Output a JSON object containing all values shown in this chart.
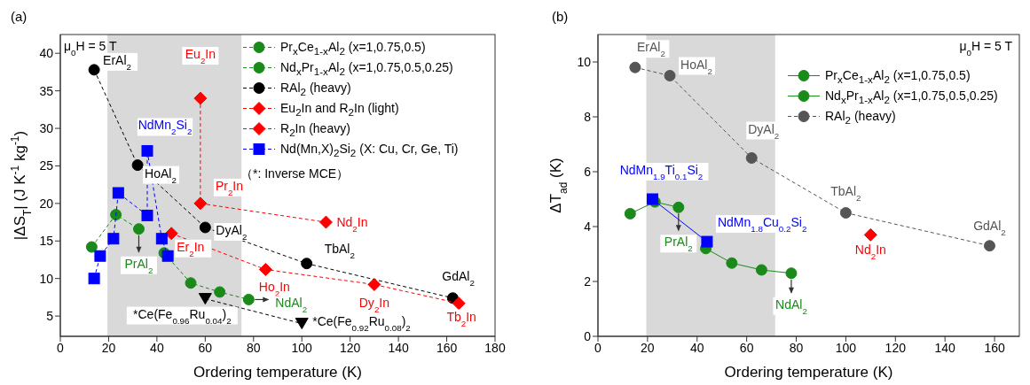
{
  "chart_data": [
    {
      "type": "scatter",
      "title": "(a)",
      "xlabel": "Ordering temperature (K)",
      "ylabel": "|ΔS$_{T}$| (J K$^{-1}$ kg$^{-1}$)",
      "xlim": [
        0,
        180
      ],
      "xticks": [
        0,
        20,
        40,
        60,
        80,
        100,
        120,
        140,
        160,
        180
      ],
      "ylim": [
        2.3,
        42.5
      ],
      "yticks": [
        5,
        10,
        15,
        20,
        25,
        30,
        35,
        40
      ],
      "legend": "top right",
      "bands": [
        {
          "axis": "x",
          "from": 19.5,
          "to": 75,
          "color": "#d9d9d9"
        }
      ],
      "series": [
        {
          "type": "line",
          "name": "Pr$_{x}$Ce$_{1-x}$Al$_{2}$ (x=1,0.75,0.5)",
          "color": "#1a8a1a",
          "marker": "circle",
          "line_style": "dashed",
          "x": [
            13,
            23,
            32.5
          ],
          "values": [
            14.2,
            18.5,
            16.6
          ]
        },
        {
          "type": "line",
          "name": "Nd$_{x}$Pr$_{1-x}$Al$_{2}$ (x=1,0.75,0.5,0.25)",
          "color": "#1a8a1a",
          "marker": "circle",
          "line_style": "dashed",
          "x": [
            43,
            54,
            66,
            78
          ],
          "values": [
            13.4,
            9.4,
            8.2,
            7.2
          ]
        },
        {
          "type": "line",
          "name": "RAl$_{2}$ (heavy)",
          "color": "#000000",
          "marker": "circle",
          "line_style": "dashed",
          "x": [
            14,
            32,
            60,
            102,
            162.5
          ],
          "values": [
            37.8,
            25.1,
            16.8,
            12,
            7.4
          ]
        },
        {
          "type": "line",
          "name": "Eu$_{2}$In and R$_{2}$In (light)",
          "color": "#ff0000",
          "marker": "diamond",
          "line_style": "dashed",
          "x": [
            58,
            58,
            110
          ],
          "values": [
            34,
            20,
            17.5
          ]
        },
        {
          "type": "line",
          "name": "R$_{2}$In (heavy)",
          "color": "#ff0000",
          "marker": "diamond",
          "line_style": "dashed",
          "x": [
            46,
            85,
            130,
            165
          ],
          "values": [
            16,
            11.2,
            9.2,
            6.7
          ]
        },
        {
          "type": "line",
          "name": "Nd(Mn,X)$_{2}$Si$_{2}$ (X: Cu, Cr, Ge, Ti)",
          "color": "#0000ff",
          "marker": "square",
          "line_style": "dashed",
          "x": [
            14,
            16.5,
            22,
            24,
            36,
            36,
            42,
            44.5
          ],
          "values": [
            10,
            13,
            15.3,
            21.4,
            18.4,
            27,
            15.3,
            13
          ]
        },
        {
          "type": "line",
          "color": "#000000",
          "marker": "triangle",
          "line_style": "dashed",
          "x": [
            60,
            100
          ],
          "values": [
            7.3,
            4
          ]
        }
      ],
      "annotations": [
        {
          "text": "ErAl$_{2}$",
          "x": 14,
          "y": 37.8
        },
        {
          "text": "HoAl$_{2}$",
          "x": 32,
          "y": 25.1
        },
        {
          "text": "DyAl$_{2}$",
          "x": 60,
          "y": 16.8
        },
        {
          "text": "TbAl$_{2}$",
          "x": 102,
          "y": 12
        },
        {
          "text": "GdAl$_{2}$",
          "x": 162.5,
          "y": 7.4
        },
        {
          "text": "Eu$_{2}$In",
          "x": 58,
          "y": 34
        },
        {
          "text": "Pr$_{2}$In",
          "x": 58,
          "y": 20
        },
        {
          "text": "Nd$_{2}$In",
          "x": 110,
          "y": 17.5
        },
        {
          "text": "Er$_{2}$In",
          "x": 46,
          "y": 16
        },
        {
          "text": "Ho$_{2}$In",
          "x": 85,
          "y": 11.2
        },
        {
          "text": "Dy$_{2}$In",
          "x": 130,
          "y": 9.2
        },
        {
          "text": "Tb$_{2}$In",
          "x": 165,
          "y": 6.7
        },
        {
          "text": "NdMn$_{2}$Si$_{2}$",
          "x": 36,
          "y": 27
        },
        {
          "text": "PrAl$_{2}$",
          "x": 32.5,
          "y": 16.6
        },
        {
          "text": "NdAl$_{2}$",
          "x": 78,
          "y": 7.2
        },
        {
          "text": "*Ce(Fe$_{0.96}$Ru$_{0.04}$)$_{2}$",
          "x": 60,
          "y": 7.3
        },
        {
          "text": "*Ce(Fe$_{0.92}$Ru$_{0.08}$)$_{2}$",
          "x": 100,
          "y": 4
        },
        "μ$_{0}$H = 5 T",
        "（*: Inverse MCE）"
      ]
    },
    {
      "type": "scatter",
      "title": "(b)",
      "xlabel": "Ordering temperature (K)",
      "ylabel": "ΔT$_{ad}$ (K)",
      "xlim": [
        0,
        170
      ],
      "xticks": [
        0,
        20,
        40,
        60,
        80,
        100,
        120,
        140,
        160
      ],
      "ylim": [
        0,
        11
      ],
      "yticks": [
        0,
        2,
        4,
        6,
        8,
        10
      ],
      "legend": "top right",
      "bands": [
        {
          "axis": "x",
          "from": 19.5,
          "to": 71.5,
          "color": "#d9d9d9"
        }
      ],
      "series": [
        {
          "type": "line",
          "name": "Pr$_{x}$Ce$_{1-x}$Al$_{2}$ (x=1,0.75,0.5)",
          "color": "#1a8a1a",
          "marker": "circle",
          "line_style": "solid",
          "x": [
            13,
            23,
            32.5
          ],
          "values": [
            4.47,
            4.9,
            4.7
          ]
        },
        {
          "type": "line",
          "name": "Nd$_{x}$Pr$_{1-x}$Al$_{2}$ (x=1,0.75,0.5,0.25)",
          "color": "#1a8a1a",
          "marker": "circle",
          "line_style": "solid",
          "x": [
            43.5,
            54,
            66,
            78
          ],
          "values": [
            3.2,
            2.67,
            2.42,
            2.3
          ]
        },
        {
          "type": "line",
          "name": "RAl$_{2}$ (heavy)",
          "color": "#555555",
          "marker": "circle",
          "line_style": "dashed",
          "x": [
            15,
            29,
            62,
            100,
            158
          ],
          "values": [
            9.8,
            9.5,
            6.5,
            4.5,
            3.3
          ]
        },
        {
          "type": "line",
          "color": "#0000ff",
          "marker": "square",
          "line_style": "solid",
          "x": [
            22,
            44
          ],
          "values": [
            5.0,
            3.45
          ]
        },
        {
          "color": "#ff0000",
          "marker": "diamond",
          "x": [
            110
          ],
          "values": [
            3.7
          ]
        }
      ],
      "annotations": [
        {
          "text": "ErAl$_{2}$",
          "x": 15,
          "y": 9.8
        },
        {
          "text": "HoAl$_{2}$",
          "x": 29,
          "y": 9.5
        },
        {
          "text": "DyAl$_{2}$",
          "x": 62,
          "y": 6.5
        },
        {
          "text": "TbAl$_{2}$",
          "x": 100,
          "y": 4.5
        },
        {
          "text": "GdAl$_{2}$",
          "x": 158,
          "y": 3.3
        },
        {
          "text": "NdMn$_{1.9}$Ti$_{0.1}$Si$_{2}$",
          "x": 22,
          "y": 5.0
        },
        {
          "text": "NdMn$_{1.8}$Cu$_{0.2}$Si$_{2}$",
          "x": 44,
          "y": 3.45
        },
        {
          "text": "PrAl$_{2}$",
          "x": 32.5,
          "y": 4.7
        },
        {
          "text": "NdAl$_{2}$",
          "x": 78,
          "y": 2.3
        },
        {
          "text": "Nd$_{2}$In",
          "x": 110,
          "y": 3.7
        },
        "μ$_{0}$H = 5 T"
      ]
    }
  ]
}
